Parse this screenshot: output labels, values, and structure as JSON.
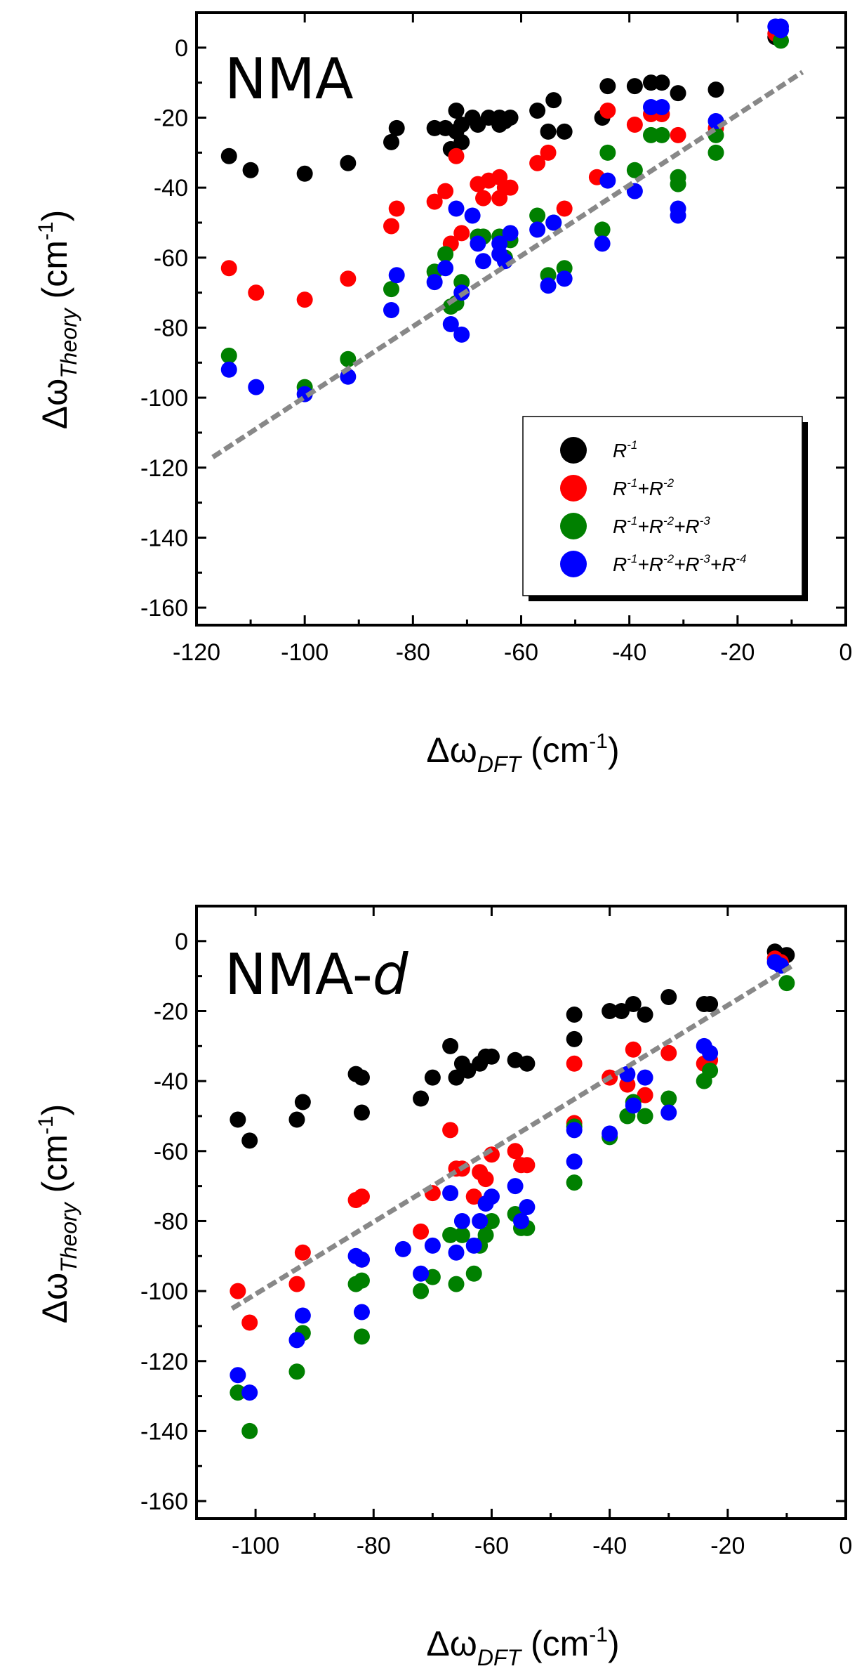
{
  "chart_data": [
    {
      "type": "scatter",
      "panel_label": "NMA",
      "xlabel": "Δω",
      "xlabel_sub": "DFT",
      "xlabel_unit": " (cm",
      "xlabel_unit_sup": "-1",
      "xlabel_unit_close": ")",
      "ylabel": "Δω",
      "ylabel_sub": "Theory",
      "ylabel_unit": " (cm",
      "ylabel_unit_sup": "-1",
      "ylabel_unit_close": ")",
      "xlim": [
        -120,
        0
      ],
      "ylim": [
        -165,
        10
      ],
      "xticks": [
        -120,
        -100,
        -80,
        -60,
        -40,
        -20,
        0
      ],
      "yticks": [
        0,
        -20,
        -40,
        -60,
        -80,
        -100,
        -120,
        -140,
        -160
      ],
      "legend": {
        "position": "lower-right",
        "entries": [
          {
            "label_parts": [
              "R",
              "-1"
            ],
            "color": "#000000"
          },
          {
            "label_parts": [
              "R",
              "-1",
              "+R",
              "-2"
            ],
            "color": "#ff0000"
          },
          {
            "label_parts": [
              "R",
              "-1",
              "+R",
              "-2",
              "+R",
              "-3"
            ],
            "color": "#008000"
          },
          {
            "label_parts": [
              "R",
              "-1",
              "+R",
              "-2",
              "+R",
              "-3",
              "+R",
              "-4"
            ],
            "color": "#0000ff"
          }
        ]
      },
      "fit_line": {
        "x": [
          -117,
          -8
        ],
        "y": [
          -117,
          -7
        ],
        "color": "#888888",
        "style": "dashed"
      },
      "series": [
        {
          "name": "R^-1",
          "color": "#000000",
          "points": [
            [
              -114,
              -31
            ],
            [
              -110,
              -35
            ],
            [
              -100,
              -36
            ],
            [
              -92,
              -33
            ],
            [
              -84,
              -27
            ],
            [
              -83,
              -23
            ],
            [
              -76,
              -23
            ],
            [
              -74,
              -23
            ],
            [
              -73,
              -29
            ],
            [
              -72,
              -24
            ],
            [
              -72,
              -18
            ],
            [
              -71,
              -27
            ],
            [
              -71,
              -22
            ],
            [
              -69,
              -20
            ],
            [
              -68,
              -22
            ],
            [
              -66,
              -20
            ],
            [
              -64,
              -22
            ],
            [
              -64,
              -20
            ],
            [
              -63,
              -21
            ],
            [
              -62,
              -20
            ],
            [
              -57,
              -18
            ],
            [
              -55,
              -24
            ],
            [
              -54,
              -15
            ],
            [
              -52,
              -24
            ],
            [
              -45,
              -20
            ],
            [
              -44,
              -11
            ],
            [
              -39,
              -11
            ],
            [
              -36,
              -10
            ],
            [
              -34,
              -10
            ],
            [
              -31,
              -13
            ],
            [
              -24,
              -12
            ],
            [
              -13,
              3
            ]
          ]
        },
        {
          "name": "R^-1+R^-2",
          "color": "#ff0000",
          "points": [
            [
              -114,
              -63
            ],
            [
              -109,
              -70
            ],
            [
              -100,
              -72
            ],
            [
              -92,
              -66
            ],
            [
              -84,
              -51
            ],
            [
              -83,
              -46
            ],
            [
              -76,
              -44
            ],
            [
              -74,
              -41
            ],
            [
              -73,
              -56
            ],
            [
              -72,
              -31
            ],
            [
              -71,
              -53
            ],
            [
              -68,
              -39
            ],
            [
              -67,
              -43
            ],
            [
              -66,
              -38
            ],
            [
              -64,
              -43
            ],
            [
              -64,
              -37
            ],
            [
              -63,
              -40
            ],
            [
              -62,
              -40
            ],
            [
              -57,
              -33
            ],
            [
              -55,
              -30
            ],
            [
              -52,
              -46
            ],
            [
              -46,
              -37
            ],
            [
              -44,
              -18
            ],
            [
              -39,
              -22
            ],
            [
              -36,
              -19
            ],
            [
              -34,
              -19
            ],
            [
              -31,
              -25
            ],
            [
              -24,
              -23
            ],
            [
              -13,
              4
            ]
          ]
        },
        {
          "name": "R^-1+R^-2+R^-3",
          "color": "#008000",
          "points": [
            [
              -114,
              -88
            ],
            [
              -100,
              -97
            ],
            [
              -92,
              -89
            ],
            [
              -84,
              -69
            ],
            [
              -76,
              -64
            ],
            [
              -74,
              -59
            ],
            [
              -73,
              -74
            ],
            [
              -72,
              -73
            ],
            [
              -71,
              -67
            ],
            [
              -68,
              -54
            ],
            [
              -67,
              -54
            ],
            [
              -64,
              -54
            ],
            [
              -63,
              -60
            ],
            [
              -62,
              -55
            ],
            [
              -57,
              -48
            ],
            [
              -55,
              -65
            ],
            [
              -54,
              -50
            ],
            [
              -52,
              -63
            ],
            [
              -45,
              -52
            ],
            [
              -44,
              -30
            ],
            [
              -39,
              -35
            ],
            [
              -36,
              -25
            ],
            [
              -34,
              -25
            ],
            [
              -31,
              -37
            ],
            [
              -31,
              -39
            ],
            [
              -24,
              -25
            ],
            [
              -24,
              -30
            ],
            [
              -12,
              2
            ]
          ]
        },
        {
          "name": "R^-1+R^-2+R^-3+R^-4",
          "color": "#0000ff",
          "points": [
            [
              -114,
              -92
            ],
            [
              -109,
              -97
            ],
            [
              -100,
              -99
            ],
            [
              -92,
              -94
            ],
            [
              -84,
              -75
            ],
            [
              -83,
              -65
            ],
            [
              -76,
              -67
            ],
            [
              -74,
              -63
            ],
            [
              -73,
              -79
            ],
            [
              -72,
              -46
            ],
            [
              -71,
              -82
            ],
            [
              -71,
              -70
            ],
            [
              -69,
              -48
            ],
            [
              -68,
              -56
            ],
            [
              -67,
              -61
            ],
            [
              -64,
              -59
            ],
            [
              -64,
              -56
            ],
            [
              -63,
              -61
            ],
            [
              -62,
              -53
            ],
            [
              -57,
              -52
            ],
            [
              -55,
              -68
            ],
            [
              -54,
              -50
            ],
            [
              -52,
              -66
            ],
            [
              -45,
              -56
            ],
            [
              -44,
              -38
            ],
            [
              -39,
              -41
            ],
            [
              -36,
              -17
            ],
            [
              -34,
              -17
            ],
            [
              -31,
              -46
            ],
            [
              -31,
              -48
            ],
            [
              -24,
              -21
            ],
            [
              -13,
              6
            ],
            [
              -12,
              6
            ],
            [
              -12,
              5
            ]
          ]
        }
      ]
    },
    {
      "type": "scatter",
      "panel_label_main": "NMA-",
      "panel_label_italic": "d",
      "xlabel": "Δω",
      "xlabel_sub": "DFT",
      "xlabel_unit": " (cm",
      "xlabel_unit_sup": "-1",
      "xlabel_unit_close": ")",
      "ylabel": "Δω",
      "ylabel_sub": "Theory",
      "ylabel_unit": " (cm",
      "ylabel_unit_sup": "-1",
      "ylabel_unit_close": ")",
      "xlim": [
        -110,
        0
      ],
      "ylim": [
        -165,
        10
      ],
      "xticks": [
        -100,
        -80,
        -60,
        -40,
        -20,
        0
      ],
      "yticks": [
        0,
        -20,
        -40,
        -60,
        -80,
        -100,
        -120,
        -140,
        -160
      ],
      "fit_line": {
        "x": [
          -104,
          -9
        ],
        "y": [
          -105,
          -7
        ],
        "color": "#888888",
        "style": "dashed"
      },
      "series": [
        {
          "name": "R^-1",
          "color": "#000000",
          "points": [
            [
              -103,
              -51
            ],
            [
              -101,
              -57
            ],
            [
              -93,
              -51
            ],
            [
              -92,
              -46
            ],
            [
              -83,
              -38
            ],
            [
              -82,
              -39
            ],
            [
              -82,
              -49
            ],
            [
              -72,
              -45
            ],
            [
              -70,
              -39
            ],
            [
              -67,
              -30
            ],
            [
              -66,
              -39
            ],
            [
              -65,
              -35
            ],
            [
              -64,
              -37
            ],
            [
              -62,
              -35
            ],
            [
              -61,
              -33
            ],
            [
              -60,
              -33
            ],
            [
              -56,
              -34
            ],
            [
              -54,
              -35
            ],
            [
              -46,
              -21
            ],
            [
              -46,
              -28
            ],
            [
              -40,
              -20
            ],
            [
              -38,
              -20
            ],
            [
              -36,
              -18
            ],
            [
              -34,
              -21
            ],
            [
              -30,
              -16
            ],
            [
              -24,
              -18
            ],
            [
              -23,
              -18
            ],
            [
              -12,
              -3
            ],
            [
              -10,
              -4
            ]
          ]
        },
        {
          "name": "R^-1+R^-2",
          "color": "#ff0000",
          "points": [
            [
              -103,
              -100
            ],
            [
              -101,
              -109
            ],
            [
              -93,
              -98
            ],
            [
              -92,
              -89
            ],
            [
              -83,
              -74
            ],
            [
              -82,
              -73
            ],
            [
              -82,
              -91
            ],
            [
              -72,
              -83
            ],
            [
              -70,
              -72
            ],
            [
              -67,
              -54
            ],
            [
              -66,
              -65
            ],
            [
              -65,
              -65
            ],
            [
              -63,
              -73
            ],
            [
              -62,
              -66
            ],
            [
              -61,
              -68
            ],
            [
              -60,
              -61
            ],
            [
              -56,
              -60
            ],
            [
              -55,
              -64
            ],
            [
              -54,
              -64
            ],
            [
              -46,
              -35
            ],
            [
              -46,
              -52
            ],
            [
              -40,
              -39
            ],
            [
              -37,
              -41
            ],
            [
              -36,
              -31
            ],
            [
              -34,
              -44
            ],
            [
              -30,
              -32
            ],
            [
              -24,
              -35
            ],
            [
              -23,
              -34
            ],
            [
              -12,
              -5
            ],
            [
              -11,
              -6
            ]
          ]
        },
        {
          "name": "R^-1+R^-2+R^-3",
          "color": "#008000",
          "points": [
            [
              -103,
              -129
            ],
            [
              -101,
              -140
            ],
            [
              -93,
              -123
            ],
            [
              -92,
              -112
            ],
            [
              -83,
              -98
            ],
            [
              -82,
              -97
            ],
            [
              -82,
              -113
            ],
            [
              -72,
              -100
            ],
            [
              -70,
              -96
            ],
            [
              -67,
              -84
            ],
            [
              -66,
              -98
            ],
            [
              -65,
              -84
            ],
            [
              -63,
              -95
            ],
            [
              -62,
              -87
            ],
            [
              -61,
              -84
            ],
            [
              -60,
              -80
            ],
            [
              -56,
              -78
            ],
            [
              -55,
              -82
            ],
            [
              -54,
              -82
            ],
            [
              -46,
              -53
            ],
            [
              -46,
              -69
            ],
            [
              -40,
              -56
            ],
            [
              -37,
              -50
            ],
            [
              -36,
              -46
            ],
            [
              -34,
              -50
            ],
            [
              -30,
              -45
            ],
            [
              -24,
              -40
            ],
            [
              -23,
              -37
            ],
            [
              -11,
              -7
            ],
            [
              -10,
              -12
            ]
          ]
        },
        {
          "name": "R^-1+R^-2+R^-3+R^-4",
          "color": "#0000ff",
          "points": [
            [
              -103,
              -124
            ],
            [
              -101,
              -129
            ],
            [
              -93,
              -114
            ],
            [
              -92,
              -107
            ],
            [
              -83,
              -90
            ],
            [
              -82,
              -91
            ],
            [
              -82,
              -106
            ],
            [
              -75,
              -88
            ],
            [
              -72,
              -95
            ],
            [
              -70,
              -87
            ],
            [
              -67,
              -72
            ],
            [
              -66,
              -89
            ],
            [
              -65,
              -80
            ],
            [
              -63,
              -87
            ],
            [
              -62,
              -80
            ],
            [
              -61,
              -75
            ],
            [
              -60,
              -73
            ],
            [
              -56,
              -70
            ],
            [
              -55,
              -80
            ],
            [
              -54,
              -76
            ],
            [
              -46,
              -54
            ],
            [
              -46,
              -63
            ],
            [
              -40,
              -55
            ],
            [
              -37,
              -38
            ],
            [
              -36,
              -47
            ],
            [
              -34,
              -39
            ],
            [
              -30,
              -49
            ],
            [
              -24,
              -30
            ],
            [
              -23,
              -32
            ],
            [
              -12,
              -6
            ],
            [
              -11,
              -7
            ]
          ]
        }
      ]
    }
  ]
}
